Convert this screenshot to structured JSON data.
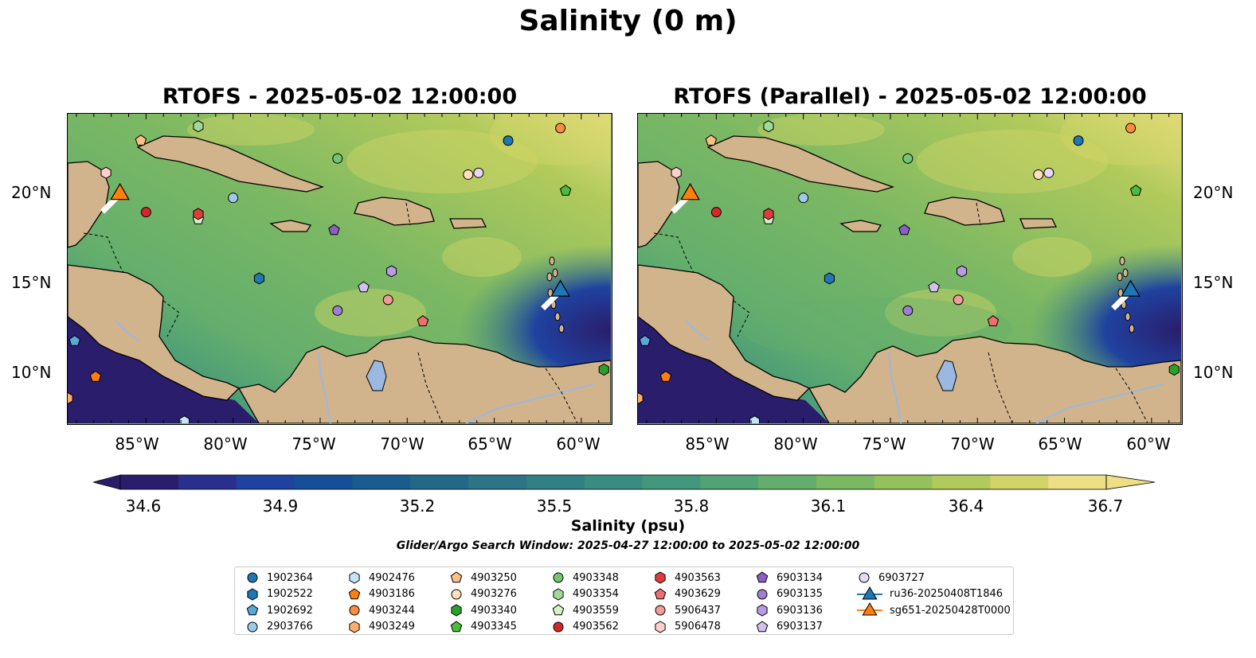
{
  "title": "Salinity (0 m)",
  "panels": [
    {
      "title": "RTOFS - 2025-05-02 12:00:00"
    },
    {
      "title": "RTOFS (Parallel) - 2025-05-02 12:00:00"
    }
  ],
  "lon_labels": [
    "85°W",
    "80°W",
    "75°W",
    "70°W",
    "65°W",
    "60°W"
  ],
  "lat_labels": [
    "20°N",
    "15°N",
    "10°N"
  ],
  "colorbar": {
    "label": "Salinity (psu)",
    "ticks": [
      "34.6",
      "34.9",
      "35.2",
      "35.5",
      "35.8",
      "36.1",
      "36.4",
      "36.7"
    ],
    "range": [
      34.6,
      36.7
    ],
    "colormap": "haline",
    "extend": "both",
    "colors": [
      "#2a1d6b",
      "#292f8c",
      "#1f42a0",
      "#154f9a",
      "#1a5c8e",
      "#246888",
      "#2c7486",
      "#318083",
      "#398c80",
      "#43977c",
      "#51a376",
      "#64ae6d",
      "#7bb863",
      "#94c15c",
      "#b1ca5b",
      "#d1d466",
      "#ecdf84"
    ]
  },
  "search_window": "Glider/Argo Search Window: 2025-04-27 12:00:00 to 2025-05-02 12:00:00",
  "legend": [
    {
      "label": "1902364",
      "marker": "circle",
      "color": "#1f77b4"
    },
    {
      "label": "1902522",
      "marker": "hexagon",
      "color": "#1f77b4"
    },
    {
      "label": "1902692",
      "marker": "pentagon",
      "color": "#5aa7d9"
    },
    {
      "label": "2903766",
      "marker": "circle",
      "color": "#9ecae9"
    },
    {
      "label": "4902476",
      "marker": "hexagon",
      "color": "#c6e4f7"
    },
    {
      "label": "4903186",
      "marker": "pentagon",
      "color": "#ff7f0e"
    },
    {
      "label": "4903244",
      "marker": "circle",
      "color": "#fd8d3c"
    },
    {
      "label": "4903249",
      "marker": "hexagon",
      "color": "#fdae6b"
    },
    {
      "label": "4903250",
      "marker": "pentagon",
      "color": "#fdc086"
    },
    {
      "label": "4903276",
      "marker": "circle",
      "color": "#fee0c0"
    },
    {
      "label": "4903340",
      "marker": "hexagon",
      "color": "#2ca02c"
    },
    {
      "label": "4903345",
      "marker": "pentagon",
      "color": "#4cbb3c"
    },
    {
      "label": "4903348",
      "marker": "circle",
      "color": "#74c476"
    },
    {
      "label": "4903354",
      "marker": "hexagon",
      "color": "#a1d99b"
    },
    {
      "label": "4903559",
      "marker": "pentagon",
      "color": "#d4f2c8"
    },
    {
      "label": "4903562",
      "marker": "circle",
      "color": "#d62728"
    },
    {
      "label": "4903563",
      "marker": "hexagon",
      "color": "#e03c3c"
    },
    {
      "label": "4903629",
      "marker": "pentagon",
      "color": "#ef6f6f"
    },
    {
      "label": "5906437",
      "marker": "circle",
      "color": "#f29b9b"
    },
    {
      "label": "5906478",
      "marker": "hexagon",
      "color": "#fcd0cb"
    },
    {
      "label": "6903134",
      "marker": "pentagon",
      "color": "#8c5fc4"
    },
    {
      "label": "6903135",
      "marker": "circle",
      "color": "#9e7fd1"
    },
    {
      "label": "6903136",
      "marker": "hexagon",
      "color": "#b89be0"
    },
    {
      "label": "6903137",
      "marker": "pentagon",
      "color": "#d3c0ef"
    },
    {
      "label": "6903727",
      "marker": "circle",
      "color": "#e6d8f7"
    },
    {
      "label": "ru36-20250408T1846",
      "marker": "triangle",
      "color": "#1f77b4"
    },
    {
      "label": "sg651-20250428T0000",
      "marker": "triangle",
      "color": "#ff7f0e"
    }
  ],
  "floats": [
    {
      "id": "1902364",
      "lon": -64.2,
      "lat": 22.8
    },
    {
      "id": "1902522",
      "lon": -78.5,
      "lat": 15.1
    },
    {
      "id": "1902692",
      "lon": -89.1,
      "lat": 11.6
    },
    {
      "id": "2903766",
      "lon": -80.0,
      "lat": 19.6
    },
    {
      "id": "4902476",
      "lon": -82.8,
      "lat": 7.1
    },
    {
      "id": "4903186",
      "lon": -87.9,
      "lat": 9.6
    },
    {
      "id": "4903244",
      "lon": -61.2,
      "lat": 23.5
    },
    {
      "id": "4903249",
      "lon": -89.5,
      "lat": 8.4
    },
    {
      "id": "4903250",
      "lon": -85.3,
      "lat": 22.8
    },
    {
      "id": "4903276",
      "lon": -66.5,
      "lat": 20.9
    },
    {
      "id": "4903340",
      "lon": -58.7,
      "lat": 10.0
    },
    {
      "id": "4903345",
      "lon": -60.9,
      "lat": 20.0
    },
    {
      "id": "4903348",
      "lon": -74.0,
      "lat": 21.8
    },
    {
      "id": "4903354",
      "lon": -82.0,
      "lat": 23.6
    },
    {
      "id": "4903559",
      "lon": -82.0,
      "lat": 18.4
    },
    {
      "id": "4903562",
      "lon": -85.0,
      "lat": 18.8
    },
    {
      "id": "4903563",
      "lon": -82.0,
      "lat": 18.7
    },
    {
      "id": "4903629",
      "lon": -69.1,
      "lat": 12.7
    },
    {
      "id": "5906437",
      "lon": -71.1,
      "lat": 13.9
    },
    {
      "id": "5906478",
      "lon": -87.3,
      "lat": 21.0
    },
    {
      "id": "6903134",
      "lon": -74.2,
      "lat": 17.8
    },
    {
      "id": "6903135",
      "lon": -74.0,
      "lat": 13.3
    },
    {
      "id": "6903136",
      "lon": -70.9,
      "lat": 15.5
    },
    {
      "id": "6903137",
      "lon": -72.5,
      "lat": 14.6
    },
    {
      "id": "6903727",
      "lon": -65.9,
      "lat": 21.0
    }
  ],
  "gliders": [
    {
      "id": "ru36-20250408T1846",
      "lon": -61.2,
      "lat": 14.4
    },
    {
      "id": "sg651-20250428T0000",
      "lon": -86.5,
      "lat": 19.8
    }
  ],
  "map_extent": {
    "lon": [
      -89.5,
      -58.3
    ],
    "lat": [
      7.0,
      24.3
    ]
  }
}
